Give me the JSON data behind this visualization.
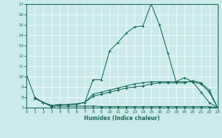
{
  "xlabel": "Humidex (Indice chaleur)",
  "xlim": [
    0,
    23
  ],
  "ylim": [
    7,
    17
  ],
  "yticks": [
    7,
    8,
    9,
    10,
    11,
    12,
    13,
    14,
    15,
    16,
    17
  ],
  "xticks": [
    0,
    1,
    2,
    3,
    4,
    5,
    6,
    7,
    8,
    9,
    10,
    11,
    12,
    13,
    14,
    15,
    16,
    17,
    18,
    19,
    20,
    21,
    22,
    23
  ],
  "bg_color": "#cceaea",
  "grid_color": "#ffffff",
  "line_color": "#1a6b5a",
  "series": [
    {
      "x": [
        0,
        1,
        2,
        3,
        4,
        5,
        6,
        7,
        8,
        9,
        10,
        11,
        12,
        13,
        14,
        15,
        16,
        17,
        18,
        19,
        20,
        21,
        22,
        23
      ],
      "y": [
        10.1,
        8.0,
        7.5,
        7.2,
        7.3,
        7.3,
        7.35,
        7.5,
        9.7,
        9.7,
        12.5,
        13.3,
        14.2,
        14.8,
        14.9,
        17.0,
        15.0,
        12.3,
        9.5,
        9.9,
        9.5,
        8.5,
        7.5,
        7.0
      ]
    },
    {
      "x": [
        1,
        2,
        3,
        4,
        5,
        6,
        7,
        8,
        9,
        10,
        11,
        12,
        13,
        14,
        15,
        16,
        17,
        18,
        19,
        20,
        21,
        22,
        23
      ],
      "y": [
        7.9,
        7.5,
        7.2,
        7.3,
        7.3,
        7.35,
        7.5,
        8.3,
        8.5,
        8.7,
        8.9,
        9.1,
        9.3,
        9.4,
        9.5,
        9.5,
        9.5,
        9.5,
        9.5,
        9.5,
        9.3,
        8.5,
        7.0
      ]
    },
    {
      "x": [
        1,
        2,
        3,
        4,
        5,
        6,
        7,
        8,
        9,
        10,
        11,
        12,
        13,
        14,
        15,
        16,
        17,
        18,
        19,
        20,
        21,
        22,
        23
      ],
      "y": [
        7.9,
        7.5,
        7.2,
        7.3,
        7.3,
        7.35,
        7.5,
        8.1,
        8.3,
        8.5,
        8.7,
        8.9,
        9.0,
        9.1,
        9.3,
        9.4,
        9.4,
        9.4,
        9.4,
        9.6,
        9.4,
        8.7,
        7.0
      ]
    },
    {
      "x": [
        1,
        2,
        3,
        4,
        5,
        6,
        7,
        8,
        9,
        10,
        11,
        12,
        13,
        14,
        15,
        16,
        17,
        18,
        19,
        20,
        21,
        22,
        23
      ],
      "y": [
        7.9,
        7.5,
        7.1,
        7.15,
        7.15,
        7.15,
        7.15,
        7.15,
        7.1,
        7.1,
        7.1,
        7.1,
        7.1,
        7.1,
        7.1,
        7.1,
        7.1,
        7.1,
        7.1,
        7.1,
        7.1,
        7.1,
        7.0
      ]
    }
  ],
  "marker": "+",
  "markersize": 3,
  "linewidth": 0.8
}
